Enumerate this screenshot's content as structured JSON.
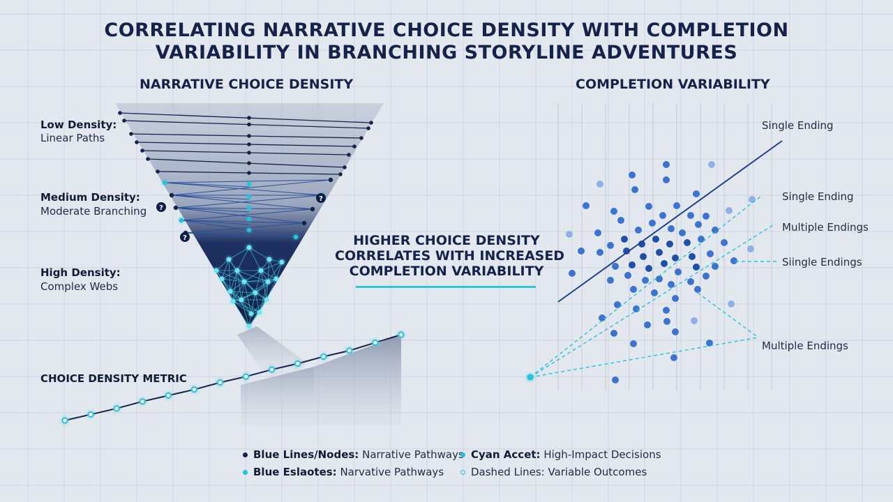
{
  "title": {
    "line1": "CORRELATING NARRATIVE CHOICE DENSITY WITH COMPLETION",
    "line2": "VARIABILITY IN BRANCHING STORYLINE ADVENTURES"
  },
  "left_panel": {
    "heading": "NARRATIVE CHOICE DENSITY",
    "levels": [
      {
        "title": "Low Density:",
        "desc": "Linear Paths"
      },
      {
        "title": "Medium Density:",
        "desc": "Moderate Branching"
      },
      {
        "title": "High Density:",
        "desc": "Complex Webs"
      }
    ],
    "question_marker": "?"
  },
  "right_panel": {
    "heading": "COMPLETION VARIABILITY",
    "annotations": [
      "Single Ending",
      "Single Ending",
      "Multiple Endings",
      "Siingle Endings",
      "Multiple Endings"
    ]
  },
  "center_callout": {
    "line1": "HIGHER CHOICE DENSITY",
    "line2": "CORRELATES WITH INCREASED",
    "line3": "COMPLETION VARIABILITY"
  },
  "metric": {
    "label": "CHOICE DENSITY METRIC",
    "points": [
      0,
      0.6,
      1.2,
      1.9,
      2.5,
      3.1,
      3.8,
      4.4,
      5.1,
      5.7,
      6.4,
      7.0,
      7.8,
      8.6
    ]
  },
  "legend": [
    {
      "key": "Blue Lines/Nodes:",
      "text": "Narrative Pathways",
      "color": "#15224a"
    },
    {
      "key": "Cyan Accet:",
      "text": "High-Impact Decisions",
      "color": "#22c3db"
    },
    {
      "key": "Blue Eslaotes:",
      "text": "Narvative Pathways",
      "color": "#22c3db"
    },
    {
      "key": "",
      "text": "Dashed Lines: Variable Outcomes",
      "color": "#22c3db"
    }
  ],
  "colors": {
    "navy": "#15224a",
    "blue": "#2f5ea8",
    "cyan": "#22c3db",
    "grid": "#cfd6e2"
  }
}
